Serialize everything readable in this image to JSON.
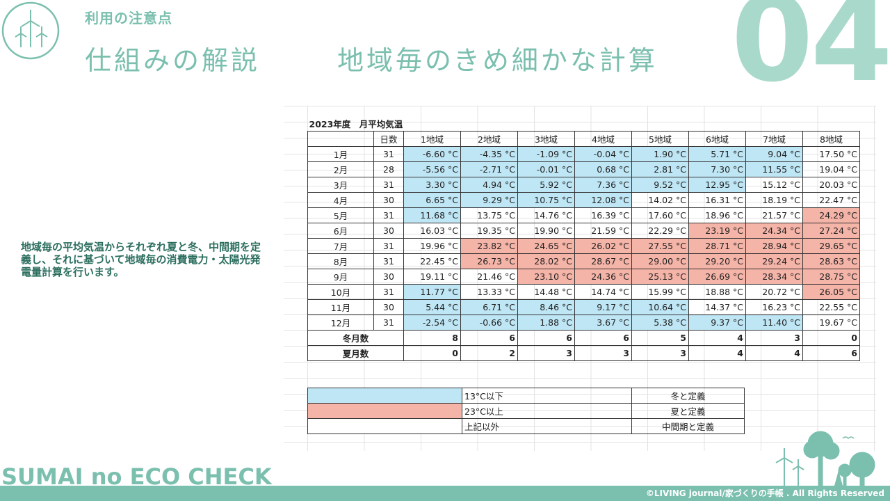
{
  "header": {
    "kicker": "利用の注意点",
    "title": "仕組みの解説",
    "subtitle": "地域毎のきめ細かな計算",
    "section_number": "04"
  },
  "description": "地域毎の平均気温からそれぞれ夏と冬、中間期を定義し、それに基づいて地域毎の消費電力・太陽光発電量計算を行います。",
  "table": {
    "title": "2023年度　月平均気温",
    "days_header": "日数",
    "regions": [
      "1地域",
      "2地域",
      "3地域",
      "4地域",
      "5地域",
      "6地域",
      "7地域",
      "8地域"
    ],
    "rows": [
      {
        "month": "1月",
        "days": "31",
        "cells": [
          {
            "v": "-6.60 °C",
            "t": "c"
          },
          {
            "v": "-4.35 °C",
            "t": "c"
          },
          {
            "v": "-1.09 °C",
            "t": "c"
          },
          {
            "v": "-0.04 °C",
            "t": "c"
          },
          {
            "v": "1.90 °C",
            "t": "c"
          },
          {
            "v": "5.71 °C",
            "t": "c"
          },
          {
            "v": "9.04 °C",
            "t": "c"
          },
          {
            "v": "17.50 °C",
            "t": ""
          }
        ]
      },
      {
        "month": "2月",
        "days": "28",
        "cells": [
          {
            "v": "-5.56 °C",
            "t": "c"
          },
          {
            "v": "-2.71 °C",
            "t": "c"
          },
          {
            "v": "-0.01 °C",
            "t": "c"
          },
          {
            "v": "0.68 °C",
            "t": "c"
          },
          {
            "v": "2.81 °C",
            "t": "c"
          },
          {
            "v": "7.30 °C",
            "t": "c"
          },
          {
            "v": "11.55 °C",
            "t": "c"
          },
          {
            "v": "19.04 °C",
            "t": ""
          }
        ]
      },
      {
        "month": "3月",
        "days": "31",
        "cells": [
          {
            "v": "3.30 °C",
            "t": "c"
          },
          {
            "v": "4.94 °C",
            "t": "c"
          },
          {
            "v": "5.92 °C",
            "t": "c"
          },
          {
            "v": "7.36 °C",
            "t": "c"
          },
          {
            "v": "9.52 °C",
            "t": "c"
          },
          {
            "v": "12.95 °C",
            "t": "c"
          },
          {
            "v": "15.12 °C",
            "t": ""
          },
          {
            "v": "20.03 °C",
            "t": ""
          }
        ]
      },
      {
        "month": "4月",
        "days": "30",
        "cells": [
          {
            "v": "6.65 °C",
            "t": "c"
          },
          {
            "v": "9.29 °C",
            "t": "c"
          },
          {
            "v": "10.75 °C",
            "t": "c"
          },
          {
            "v": "12.08 °C",
            "t": "c"
          },
          {
            "v": "14.02 °C",
            "t": ""
          },
          {
            "v": "16.31 °C",
            "t": ""
          },
          {
            "v": "18.19 °C",
            "t": ""
          },
          {
            "v": "22.47 °C",
            "t": ""
          }
        ]
      },
      {
        "month": "5月",
        "days": "31",
        "cells": [
          {
            "v": "11.68 °C",
            "t": "c"
          },
          {
            "v": "13.75 °C",
            "t": ""
          },
          {
            "v": "14.76 °C",
            "t": ""
          },
          {
            "v": "16.39 °C",
            "t": ""
          },
          {
            "v": "17.60 °C",
            "t": ""
          },
          {
            "v": "18.96 °C",
            "t": ""
          },
          {
            "v": "21.57 °C",
            "t": ""
          },
          {
            "v": "24.29 °C",
            "t": "h"
          }
        ]
      },
      {
        "month": "6月",
        "days": "30",
        "cells": [
          {
            "v": "16.03 °C",
            "t": ""
          },
          {
            "v": "19.35 °C",
            "t": ""
          },
          {
            "v": "19.90 °C",
            "t": ""
          },
          {
            "v": "21.59 °C",
            "t": ""
          },
          {
            "v": "22.29 °C",
            "t": ""
          },
          {
            "v": "23.19 °C",
            "t": "h"
          },
          {
            "v": "24.34 °C",
            "t": "h"
          },
          {
            "v": "27.24 °C",
            "t": "h"
          }
        ]
      },
      {
        "month": "7月",
        "days": "31",
        "cells": [
          {
            "v": "19.96 °C",
            "t": ""
          },
          {
            "v": "23.82 °C",
            "t": "h"
          },
          {
            "v": "24.65 °C",
            "t": "h"
          },
          {
            "v": "26.02 °C",
            "t": "h"
          },
          {
            "v": "27.55 °C",
            "t": "h"
          },
          {
            "v": "28.71 °C",
            "t": "h"
          },
          {
            "v": "28.94 °C",
            "t": "h"
          },
          {
            "v": "29.65 °C",
            "t": "h"
          }
        ]
      },
      {
        "month": "8月",
        "days": "31",
        "cells": [
          {
            "v": "22.45 °C",
            "t": ""
          },
          {
            "v": "26.73 °C",
            "t": "h"
          },
          {
            "v": "28.02 °C",
            "t": "h"
          },
          {
            "v": "28.67 °C",
            "t": "h"
          },
          {
            "v": "29.00 °C",
            "t": "h"
          },
          {
            "v": "29.20 °C",
            "t": "h"
          },
          {
            "v": "29.24 °C",
            "t": "h"
          },
          {
            "v": "28.63 °C",
            "t": "h"
          }
        ]
      },
      {
        "month": "9月",
        "days": "30",
        "cells": [
          {
            "v": "19.11 °C",
            "t": ""
          },
          {
            "v": "21.46 °C",
            "t": ""
          },
          {
            "v": "23.10 °C",
            "t": "h"
          },
          {
            "v": "24.36 °C",
            "t": "h"
          },
          {
            "v": "25.13 °C",
            "t": "h"
          },
          {
            "v": "26.69 °C",
            "t": "h"
          },
          {
            "v": "28.34 °C",
            "t": "h"
          },
          {
            "v": "28.75 °C",
            "t": "h"
          }
        ]
      },
      {
        "month": "10月",
        "days": "31",
        "cells": [
          {
            "v": "11.77 °C",
            "t": "c"
          },
          {
            "v": "13.33 °C",
            "t": ""
          },
          {
            "v": "14.48 °C",
            "t": ""
          },
          {
            "v": "14.74 °C",
            "t": ""
          },
          {
            "v": "15.99 °C",
            "t": ""
          },
          {
            "v": "18.88 °C",
            "t": ""
          },
          {
            "v": "20.72 °C",
            "t": ""
          },
          {
            "v": "26.05 °C",
            "t": "h"
          }
        ]
      },
      {
        "month": "11月",
        "days": "30",
        "cells": [
          {
            "v": "5.44 °C",
            "t": "c"
          },
          {
            "v": "6.71 °C",
            "t": "c"
          },
          {
            "v": "8.46 °C",
            "t": "c"
          },
          {
            "v": "9.17 °C",
            "t": "c"
          },
          {
            "v": "10.64 °C",
            "t": "c"
          },
          {
            "v": "14.37 °C",
            "t": ""
          },
          {
            "v": "16.23 °C",
            "t": ""
          },
          {
            "v": "22.55 °C",
            "t": ""
          }
        ]
      },
      {
        "month": "12月",
        "days": "31",
        "cells": [
          {
            "v": "-2.54 °C",
            "t": "c"
          },
          {
            "v": "-0.66 °C",
            "t": "c"
          },
          {
            "v": "1.88 °C",
            "t": "c"
          },
          {
            "v": "3.67 °C",
            "t": "c"
          },
          {
            "v": "5.38 °C",
            "t": "c"
          },
          {
            "v": "9.37 °C",
            "t": "c"
          },
          {
            "v": "11.40 °C",
            "t": "c"
          },
          {
            "v": "19.67 °C",
            "t": ""
          }
        ]
      }
    ],
    "winter_label": "冬月数",
    "winter_counts": [
      "8",
      "6",
      "6",
      "6",
      "5",
      "4",
      "3",
      "0"
    ],
    "summer_label": "夏月数",
    "summer_counts": [
      "0",
      "2",
      "3",
      "3",
      "3",
      "4",
      "4",
      "6"
    ]
  },
  "legend": [
    {
      "condition": "13°C以下",
      "meaning": "冬と定義",
      "color": "#bfe6f5"
    },
    {
      "condition": "23°C以上",
      "meaning": "夏と定義",
      "color": "#f5b4a8"
    },
    {
      "condition": "上記以外",
      "meaning": "中間期と定義",
      "color": "#ffffff"
    }
  ],
  "footer": {
    "brand": "SUMAI no ECO CHECK",
    "copyright": "©LIVING journal/家づくりの手帳 . All Rights Reserved"
  },
  "colors": {
    "accent": "#7bbfae",
    "cold": "#bfe6f5",
    "hot": "#f5b4a8"
  },
  "icons": [
    "wind-turbine-logo-icon",
    "trees-illustration-icon"
  ]
}
